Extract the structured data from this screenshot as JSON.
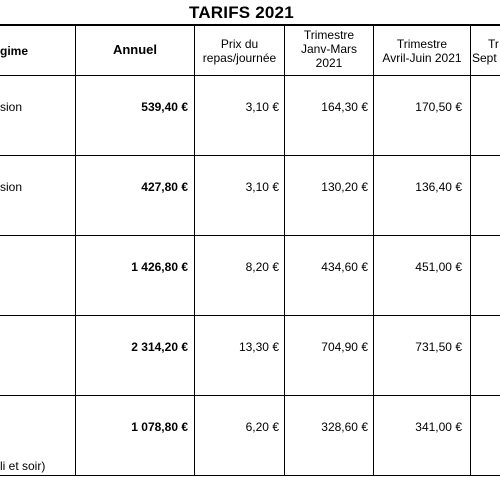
{
  "title": "TARIFS 2021",
  "headers": {
    "regime": "gime",
    "annuel": "Annuel",
    "prix_l1": "Prix du",
    "prix_l2": "repas/journée",
    "t1_l1": "Trimestre",
    "t1_l2": "Janv-Mars",
    "t1_l3": "2021",
    "t2_l1": "Trimestre",
    "t2_l2": "Avril-Juin 2021",
    "t3_l1": "Tr",
    "t3_l2": "Sept"
  },
  "rows": [
    {
      "regime": "sion",
      "annuel": "539,40 €",
      "prix": "3,10 €",
      "t1": "164,30 €",
      "t2": "170,50 €"
    },
    {
      "regime": "sion",
      "annuel": "427,80 €",
      "prix": "3,10 €",
      "t1": "130,20 €",
      "t2": "136,40 €"
    },
    {
      "regime": "",
      "annuel": "1 426,80 €",
      "prix": "8,20 €",
      "t1": "434,60 €",
      "t2": "451,00 €"
    },
    {
      "regime": "",
      "annuel": "2 314,20 €",
      "prix": "13,30 €",
      "t1": "704,90 €",
      "t2": "731,50 €"
    },
    {
      "regime": "li et soir)",
      "annuel": "1 078,80 €",
      "prix": "6,20 €",
      "t1": "328,60 €",
      "t2": "341,00 €"
    }
  ]
}
